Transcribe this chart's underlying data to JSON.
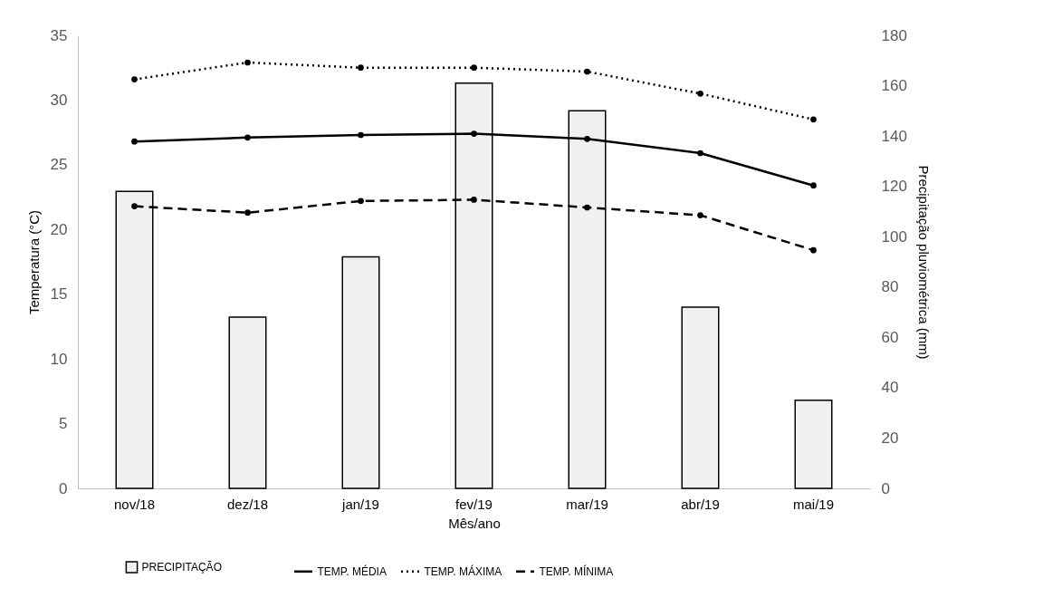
{
  "chart_data": {
    "type": "line",
    "xlabel": "Mês/ano",
    "ylabel": "Temperatura (°C)",
    "y2label": "Precipitação pluviométrica (mm)",
    "categories": [
      "nov/18",
      "dez/18",
      "jan/19",
      "fev/19",
      "mar/19",
      "abr/19",
      "mai/19"
    ],
    "ylim": [
      0,
      35
    ],
    "yticks": [
      0,
      5,
      10,
      15,
      20,
      25,
      30,
      35
    ],
    "y2lim": [
      0,
      180
    ],
    "y2ticks": [
      0,
      20,
      40,
      60,
      80,
      100,
      120,
      140,
      160,
      180
    ],
    "grid": false,
    "legend": "bottom",
    "marker": "circle",
    "series": [
      {
        "name": "PRECIPITAÇÃO",
        "type": "bar",
        "axis": "y2",
        "color": "#f0f0f0",
        "values": [
          118,
          68,
          92,
          161,
          150,
          72,
          35
        ]
      },
      {
        "name": "TEMP. MÉDIA",
        "line_style": "solid",
        "color": "#000000",
        "values": [
          26.8,
          27.1,
          27.3,
          27.4,
          27.0,
          25.9,
          23.4
        ]
      },
      {
        "name": "TEMP. MÁXIMA",
        "line_style": "dotted",
        "color": "#000000",
        "values": [
          31.6,
          32.9,
          32.5,
          32.5,
          32.2,
          30.5,
          28.5
        ]
      },
      {
        "name": "TEMP. MÍNIMA",
        "line_style": "dashed",
        "color": "#000000",
        "values": [
          21.8,
          21.3,
          22.2,
          22.3,
          21.7,
          21.1,
          18.4
        ]
      }
    ]
  }
}
